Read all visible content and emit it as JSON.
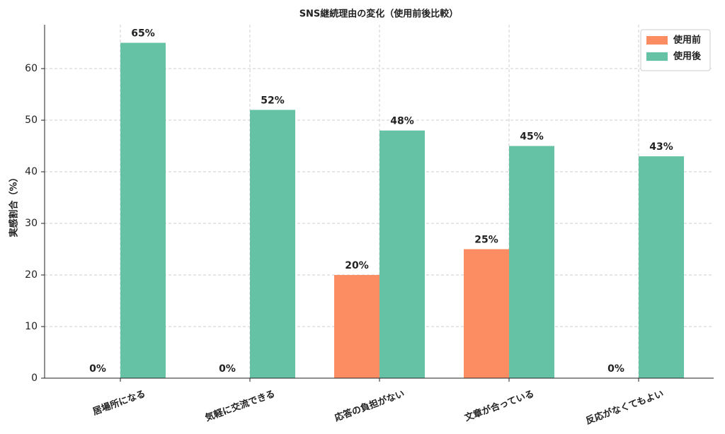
{
  "chart_data": {
    "type": "bar",
    "title": "SNS継続理由の変化（使用前後比較）",
    "y_label": "実感割合（%）",
    "categories": [
      "居場所になる",
      "気軽に交流できる",
      "応答の負担がない",
      "文章が合っている",
      "反応がなくてもよい"
    ],
    "series": [
      {
        "name": "使用前",
        "color": "#fc8d62",
        "values": [
          0,
          0,
          20,
          25,
          0
        ],
        "value_labels": [
          "0%",
          "0%",
          "20%",
          "25%",
          "0%"
        ]
      },
      {
        "name": "使用後",
        "color": "#66c2a5",
        "values": [
          65,
          52,
          48,
          45,
          43
        ],
        "value_labels": [
          "65%",
          "52%",
          "48%",
          "45%",
          "43%"
        ]
      }
    ],
    "ylim": [
      0,
      68.5
    ],
    "yticks": [
      0,
      10,
      20,
      30,
      40,
      50,
      60
    ],
    "grid": true,
    "legend": "upper right"
  }
}
